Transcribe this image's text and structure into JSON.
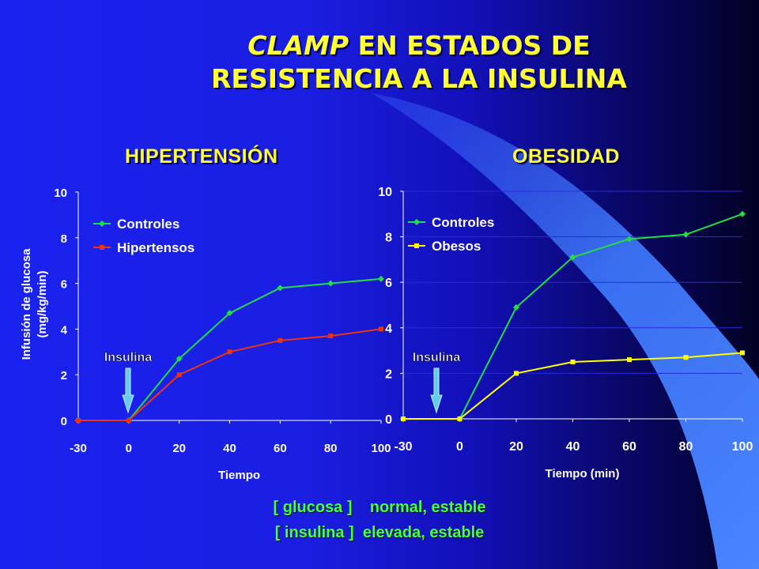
{
  "slide": {
    "title_italic": "CLAMP",
    "title_rest": " EN ESTADOS DE",
    "title_line2": "RESISTENCIA A LA INSULINA",
    "footer_line1": "[ glucosa ]    normal, estable",
    "footer_line2": "[ insulina ]  elevada, estable"
  },
  "colors": {
    "controles": "#22dd44",
    "hipertensos": "#ee3311",
    "obesos": "#ffff00",
    "title": "#ffff33",
    "arrow": "#66ccee"
  },
  "chart_data": [
    {
      "type": "line",
      "title": "HIPERTENSIÓN",
      "xlabel": "Tiempo",
      "ylabel": "Infusión de glucosa (mg/kg/min)",
      "x": [
        -30,
        0,
        20,
        40,
        60,
        80,
        100
      ],
      "x_tick_labels": [
        "-30",
        "0",
        "20",
        "40",
        "60",
        "80",
        "100"
      ],
      "ylim": [
        0,
        10
      ],
      "y_ticks": [
        "0",
        "2",
        "4",
        "6",
        "8",
        "10"
      ],
      "grid": false,
      "legend": "top-left",
      "annotation": "Insulina",
      "series": [
        {
          "name": "Controles",
          "values": [
            0.0,
            0.0,
            2.7,
            4.7,
            5.8,
            6.0,
            6.2
          ]
        },
        {
          "name": "Hipertensos",
          "values": [
            0.0,
            0.0,
            2.0,
            3.0,
            3.5,
            3.7,
            4.0
          ]
        }
      ]
    },
    {
      "type": "line",
      "title": "OBESIDAD",
      "xlabel": "Tiempo (min)",
      "ylabel": "",
      "x": [
        -30,
        0,
        20,
        40,
        60,
        80,
        100
      ],
      "x_tick_labels": [
        "-30",
        "0",
        "20",
        "40",
        "60",
        "80",
        "100"
      ],
      "ylim": [
        0,
        10
      ],
      "y_ticks": [
        "0",
        "2",
        "4",
        "6",
        "8",
        "10"
      ],
      "grid": true,
      "legend": "top-left",
      "annotation": "Insulina",
      "series": [
        {
          "name": "Controles",
          "values": [
            0.0,
            0.0,
            4.9,
            7.1,
            7.9,
            8.1,
            9.0
          ]
        },
        {
          "name": "Obesos",
          "values": [
            0.0,
            0.0,
            2.0,
            2.5,
            2.6,
            2.7,
            2.9
          ]
        }
      ]
    }
  ]
}
